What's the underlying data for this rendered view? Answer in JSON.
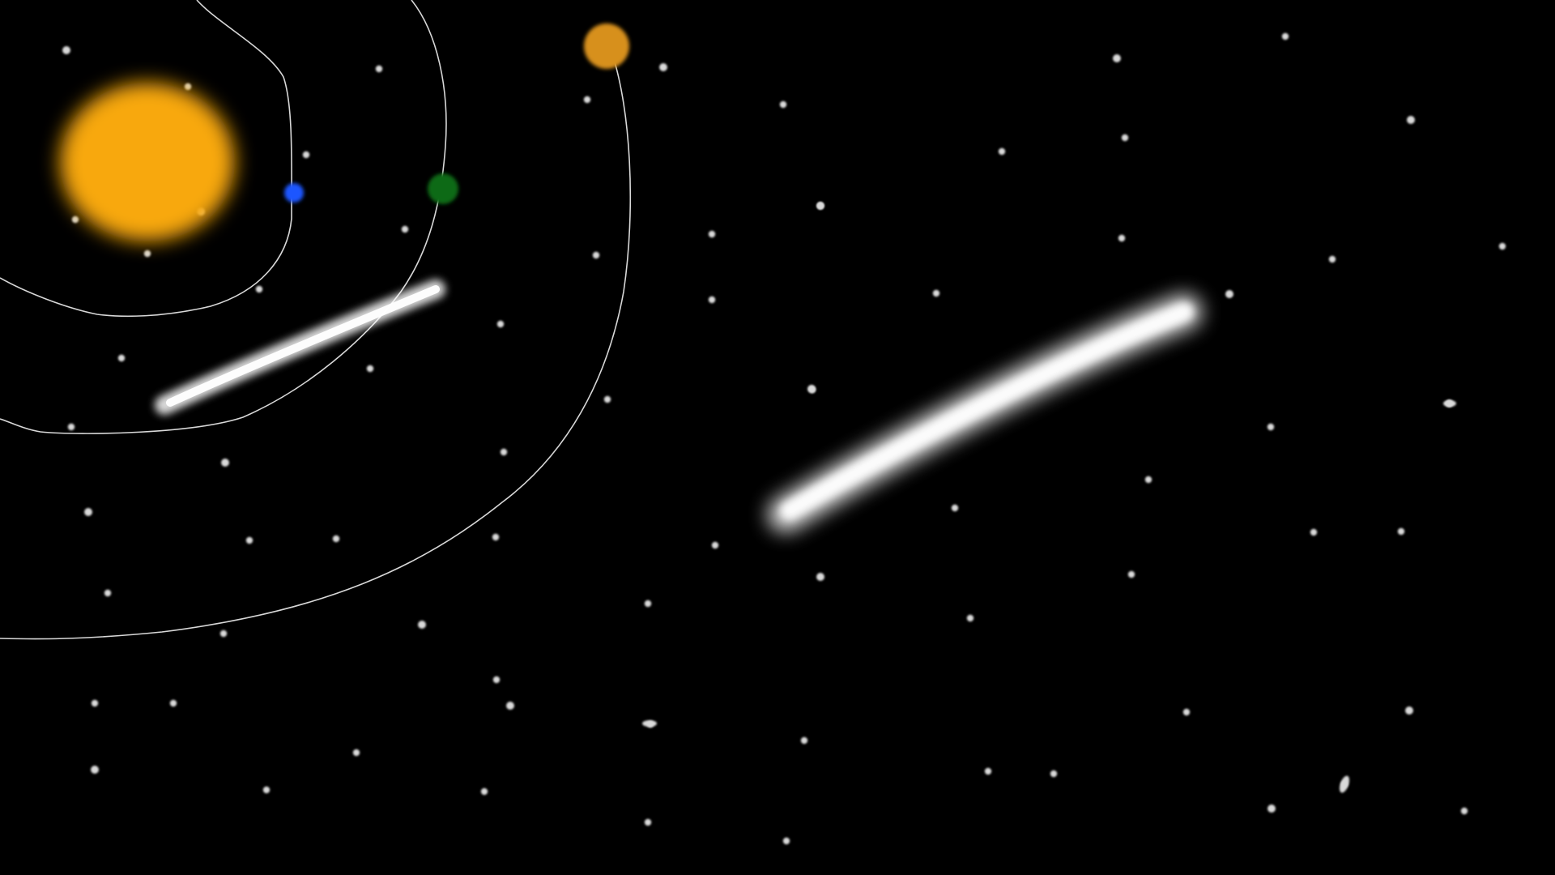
{
  "scene": {
    "background_color": "#000000",
    "sun": {
      "name": "sun",
      "color": "#F8A80C"
    },
    "planets": [
      {
        "name": "blue-planet",
        "color": "#1E56FF"
      },
      {
        "name": "green-planet",
        "color": "#0F6A17"
      },
      {
        "name": "orange-planet",
        "color": "#D7901A"
      }
    ],
    "orbit_color": "#D8D8D8",
    "star_color": "#D9D9D9",
    "comet_color": "#FFFFFF",
    "comet_count": 2,
    "orbit_count": 3
  }
}
